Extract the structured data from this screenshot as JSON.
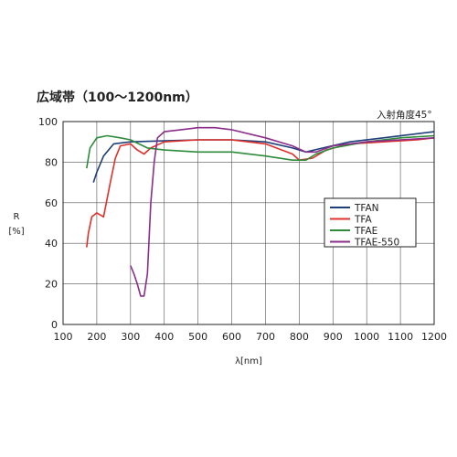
{
  "title": "広域帯（100～1200nm）",
  "subtitle": "入射角度45°",
  "chart_data": {
    "type": "line",
    "xlabel": "λ[nm]",
    "ylabel_main": "R",
    "ylabel_unit": "[%]",
    "xlim": [
      100,
      1200
    ],
    "ylim": [
      0,
      100
    ],
    "xticks": [
      100,
      200,
      300,
      400,
      500,
      600,
      700,
      800,
      900,
      1000,
      1100,
      1200
    ],
    "yticks": [
      0,
      20,
      40,
      60,
      80,
      100
    ],
    "grid": true,
    "legend_position": "right-middle",
    "series": [
      {
        "name": "TFAN",
        "color": "#1f3f7a",
        "points": [
          [
            190,
            70
          ],
          [
            200,
            75
          ],
          [
            220,
            83
          ],
          [
            250,
            89
          ],
          [
            300,
            90
          ],
          [
            400,
            90.5
          ],
          [
            500,
            91
          ],
          [
            600,
            91
          ],
          [
            700,
            90
          ],
          [
            780,
            87
          ],
          [
            820,
            85
          ],
          [
            870,
            87
          ],
          [
            950,
            90
          ],
          [
            1050,
            92
          ],
          [
            1150,
            94
          ],
          [
            1200,
            95
          ]
        ]
      },
      {
        "name": "TFA",
        "color": "#e0302a",
        "points": [
          [
            170,
            38
          ],
          [
            175,
            45
          ],
          [
            185,
            53
          ],
          [
            200,
            55
          ],
          [
            220,
            53
          ],
          [
            240,
            70
          ],
          [
            255,
            82
          ],
          [
            270,
            88
          ],
          [
            300,
            89
          ],
          [
            320,
            86
          ],
          [
            340,
            84
          ],
          [
            360,
            87
          ],
          [
            400,
            90
          ],
          [
            500,
            91
          ],
          [
            600,
            91
          ],
          [
            700,
            89
          ],
          [
            780,
            84
          ],
          [
            800,
            81
          ],
          [
            840,
            82
          ],
          [
            880,
            86
          ],
          [
            950,
            89
          ],
          [
            1050,
            90
          ],
          [
            1150,
            91
          ],
          [
            1200,
            92
          ]
        ]
      },
      {
        "name": "TFAE",
        "color": "#2e8b3a",
        "points": [
          [
            170,
            77
          ],
          [
            180,
            87
          ],
          [
            200,
            92
          ],
          [
            230,
            93
          ],
          [
            270,
            92
          ],
          [
            300,
            91
          ],
          [
            350,
            87
          ],
          [
            400,
            86
          ],
          [
            500,
            85
          ],
          [
            600,
            85
          ],
          [
            700,
            83
          ],
          [
            780,
            81
          ],
          [
            820,
            81
          ],
          [
            850,
            84
          ],
          [
            900,
            87
          ],
          [
            1000,
            90
          ],
          [
            1100,
            92
          ],
          [
            1200,
            93
          ]
        ]
      },
      {
        "name": "TFAE-550",
        "color": "#8b2d8b",
        "points": [
          [
            300,
            29
          ],
          [
            310,
            25
          ],
          [
            320,
            20
          ],
          [
            330,
            14
          ],
          [
            340,
            14
          ],
          [
            350,
            25
          ],
          [
            360,
            60
          ],
          [
            370,
            80
          ],
          [
            380,
            92
          ],
          [
            400,
            95
          ],
          [
            450,
            96
          ],
          [
            500,
            97
          ],
          [
            550,
            97
          ],
          [
            600,
            96
          ],
          [
            700,
            92
          ],
          [
            780,
            88
          ],
          [
            820,
            85
          ],
          [
            850,
            85
          ],
          [
            900,
            88
          ],
          [
            950,
            89
          ],
          [
            1000,
            90
          ],
          [
            1050,
            90.5
          ],
          [
            1100,
            91
          ],
          [
            1150,
            91.5
          ],
          [
            1200,
            92
          ]
        ]
      }
    ]
  }
}
